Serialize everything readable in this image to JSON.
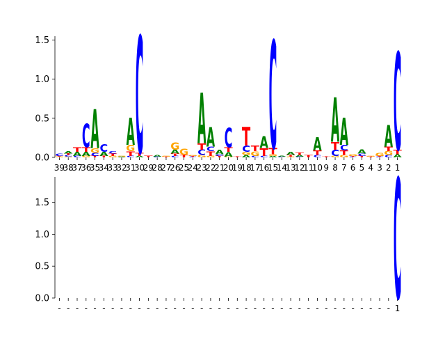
{
  "colors": {
    "A": "#008000",
    "C": "#0000ff",
    "G": "#ffa500",
    "T": "#ff0000"
  },
  "chart_data": [
    {
      "type": "sequence_logo",
      "ylim": [
        0,
        1.55
      ],
      "yticks": [
        0.0,
        0.5,
        1.0,
        1.5
      ],
      "ytick_labels": [
        "0.0",
        "0.5",
        "1.0",
        "1.5"
      ],
      "positions": [
        {
          "label": "39",
          "letters": {
            "G": 0.01,
            "T": 0.01,
            "C": 0.03
          }
        },
        {
          "label": "38",
          "letters": {
            "G": 0.01,
            "C": 0.02,
            "T": 0.02,
            "A": 0.03
          }
        },
        {
          "label": "37",
          "letters": {
            "C": 0.02,
            "T": 0.06,
            "A": 0.05
          }
        },
        {
          "label": "36",
          "letters": {
            "G": 0.02,
            "T": 0.06,
            "A": 0.05,
            "C": 0.3
          }
        },
        {
          "label": "35",
          "letters": {
            "T": 0.02,
            "C": 0.04,
            "G": 0.06,
            "A": 0.5
          }
        },
        {
          "label": "34",
          "letters": {
            "T": 0.02,
            "A": 0.05,
            "C": 0.1
          }
        },
        {
          "label": "33",
          "letters": {
            "G": 0.02,
            "T": 0.03,
            "C": 0.03
          }
        },
        {
          "label": "32",
          "letters": {
            "A": 0.01,
            "G": 0.01
          }
        },
        {
          "label": "31",
          "letters": {
            "C": 0.02,
            "T": 0.06,
            "G": 0.08,
            "A": 0.35
          }
        },
        {
          "label": "30",
          "letters": {
            "A": 0.02,
            "T": 0.04,
            "C": 1.5
          }
        },
        {
          "label": "29",
          "letters": {
            "T": 0.02
          }
        },
        {
          "label": "28",
          "letters": {
            "C": 0.01,
            "A": 0.02
          }
        },
        {
          "label": "27",
          "letters": {
            "T": 0.01,
            "G": 0.01
          }
        },
        {
          "label": "26",
          "letters": {
            "C": 0.02,
            "T": 0.03,
            "A": 0.05,
            "G": 0.09
          }
        },
        {
          "label": "25",
          "letters": {
            "T": 0.03,
            "G": 0.08
          }
        },
        {
          "label": "24",
          "letters": {
            "C": 0.01,
            "T": 0.01,
            "G": 0.01
          }
        },
        {
          "label": "23",
          "letters": {
            "G": 0.03,
            "T": 0.08,
            "C": 0.07,
            "A": 0.65
          }
        },
        {
          "label": "22",
          "letters": {
            "G": 0.02,
            "T": 0.06,
            "C": 0.06,
            "A": 0.25
          }
        },
        {
          "label": "21",
          "letters": {
            "T": 0.02,
            "C": 0.02,
            "A": 0.06
          }
        },
        {
          "label": "20",
          "letters": {
            "G": 0.01,
            "A": 0.06,
            "T": 0.06,
            "C": 0.25
          }
        },
        {
          "label": "19",
          "letters": {
            "T": 0.01
          }
        },
        {
          "label": "18",
          "letters": {
            "A": 0.03,
            "G": 0.04,
            "C": 0.08,
            "T": 0.24
          }
        },
        {
          "label": "17",
          "letters": {
            "C": 0.02,
            "T": 0.07,
            "G": 0.06
          }
        },
        {
          "label": "16",
          "letters": {
            "C": 0.02,
            "T": 0.1,
            "A": 0.15
          }
        },
        {
          "label": "15",
          "letters": {
            "A": 0.02,
            "G": 0.02,
            "T": 0.08,
            "C": 1.38
          }
        },
        {
          "label": "14",
          "letters": {
            "C": 0.01,
            "A": 0.01
          }
        },
        {
          "label": "13",
          "letters": {
            "G": 0.01,
            "T": 0.02,
            "A": 0.04
          }
        },
        {
          "label": "12",
          "letters": {
            "C": 0.01,
            "A": 0.02,
            "T": 0.03
          }
        },
        {
          "label": "11",
          "letters": {
            "T": 0.03
          }
        },
        {
          "label": "10",
          "letters": {
            "C": 0.03,
            "T": 0.06,
            "A": 0.17
          }
        },
        {
          "label": "9",
          "letters": {
            "T": 0.01
          }
        },
        {
          "label": "8",
          "letters": {
            "G": 0.02,
            "T": 0.1,
            "C": 0.08,
            "A": 0.57
          }
        },
        {
          "label": "7",
          "letters": {
            "G": 0.03,
            "T": 0.06,
            "C": 0.07,
            "A": 0.35
          }
        },
        {
          "label": "6",
          "letters": {
            "C": 0.01,
            "T": 0.01,
            "G": 0.02
          }
        },
        {
          "label": "5",
          "letters": {
            "T": 0.02,
            "C": 0.03,
            "A": 0.05
          }
        },
        {
          "label": "4",
          "letters": {
            "T": 0.01,
            "G": 0.01
          }
        },
        {
          "label": "3",
          "letters": {
            "C": 0.01,
            "T": 0.01,
            "G": 0.04
          }
        },
        {
          "label": "2",
          "letters": {
            "C": 0.03,
            "G": 0.05,
            "T": 0.06,
            "A": 0.28
          }
        },
        {
          "label": "1",
          "letters": {
            "A": 0.04,
            "T": 0.06,
            "C": 1.25
          }
        }
      ]
    },
    {
      "type": "sequence_logo",
      "ylim": [
        0,
        1.9
      ],
      "yticks": [
        0.0,
        0.5,
        1.0,
        1.5
      ],
      "ytick_labels": [
        "0.0",
        "0.5",
        "1.0",
        "1.5"
      ],
      "positions": [
        {
          "label": "-",
          "letters": {}
        },
        {
          "label": "-",
          "letters": {}
        },
        {
          "label": "-",
          "letters": {}
        },
        {
          "label": "-",
          "letters": {}
        },
        {
          "label": "-",
          "letters": {}
        },
        {
          "label": "-",
          "letters": {}
        },
        {
          "label": "-",
          "letters": {}
        },
        {
          "label": "-",
          "letters": {}
        },
        {
          "label": "-",
          "letters": {}
        },
        {
          "label": "-",
          "letters": {}
        },
        {
          "label": "-",
          "letters": {}
        },
        {
          "label": "-",
          "letters": {}
        },
        {
          "label": "-",
          "letters": {}
        },
        {
          "label": "-",
          "letters": {}
        },
        {
          "label": "-",
          "letters": {}
        },
        {
          "label": "-",
          "letters": {}
        },
        {
          "label": "-",
          "letters": {}
        },
        {
          "label": "-",
          "letters": {}
        },
        {
          "label": "-",
          "letters": {}
        },
        {
          "label": "-",
          "letters": {}
        },
        {
          "label": "-",
          "letters": {}
        },
        {
          "label": "-",
          "letters": {}
        },
        {
          "label": "-",
          "letters": {}
        },
        {
          "label": "-",
          "letters": {}
        },
        {
          "label": "-",
          "letters": {}
        },
        {
          "label": "-",
          "letters": {}
        },
        {
          "label": "-",
          "letters": {}
        },
        {
          "label": "-",
          "letters": {}
        },
        {
          "label": "-",
          "letters": {}
        },
        {
          "label": "-",
          "letters": {}
        },
        {
          "label": "-",
          "letters": {}
        },
        {
          "label": "-",
          "letters": {}
        },
        {
          "label": "-",
          "letters": {}
        },
        {
          "label": "-",
          "letters": {}
        },
        {
          "label": "-",
          "letters": {}
        },
        {
          "label": "-",
          "letters": {}
        },
        {
          "label": "-",
          "letters": {}
        },
        {
          "label": "-",
          "letters": {}
        },
        {
          "label": "1",
          "letters": {
            "C": 1.89
          }
        }
      ]
    }
  ]
}
